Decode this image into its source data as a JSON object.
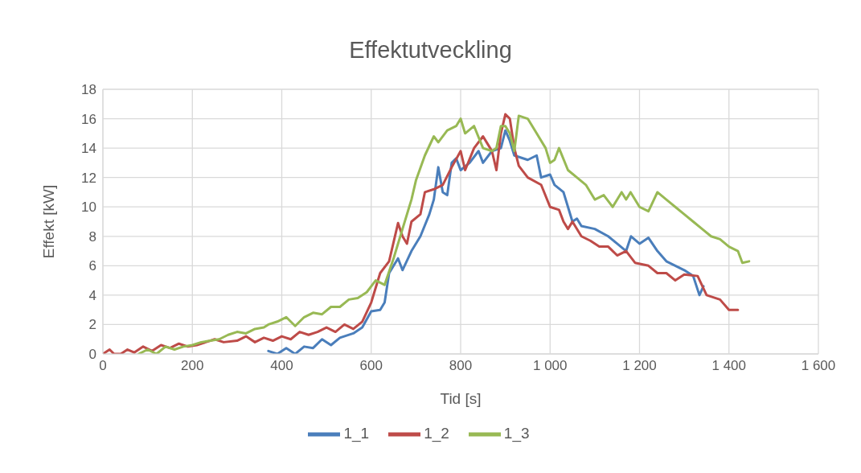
{
  "chart_data": {
    "type": "line",
    "title": "Effektutveckling",
    "xlabel": "Tid [s]",
    "ylabel": "Effekt [kW]",
    "xlim": [
      0,
      1600
    ],
    "xticks": [
      0,
      200,
      400,
      600,
      800,
      {
        "value": 1000,
        "label": "1 000"
      },
      {
        "value": 1200,
        "label": "1 200"
      },
      {
        "value": 1400,
        "label": "1 400"
      },
      {
        "value": 1600,
        "label": "1 600"
      }
    ],
    "ylim": [
      0,
      18
    ],
    "yticks": [
      0,
      2,
      4,
      6,
      8,
      10,
      12,
      14,
      16,
      18
    ],
    "grid": true,
    "legend": "bottom",
    "series": [
      {
        "name": "1_1",
        "color": "#4a7ebb",
        "x": [
          370,
          390,
          410,
          430,
          450,
          470,
          490,
          510,
          530,
          560,
          580,
          600,
          620,
          630,
          640,
          660,
          670,
          690,
          710,
          730,
          740,
          750,
          760,
          770,
          780,
          790,
          800,
          820,
          840,
          850,
          870,
          890,
          900,
          910,
          920,
          950,
          970,
          980,
          1000,
          1010,
          1030,
          1040,
          1050,
          1060,
          1070,
          1100,
          1130,
          1150,
          1170,
          1181,
          1200,
          1220,
          1240,
          1260,
          1280,
          1300,
          1320,
          1334,
          1343
        ],
        "values": [
          0.2,
          0.0,
          0.4,
          0.0,
          0.5,
          0.4,
          1.0,
          0.6,
          1.1,
          1.4,
          1.8,
          2.9,
          3.0,
          3.5,
          5.5,
          6.5,
          5.7,
          7.0,
          8.0,
          9.5,
          10.5,
          12.7,
          11.0,
          10.8,
          13.0,
          13.3,
          12.5,
          13.0,
          13.8,
          13.0,
          13.8,
          14.0,
          15.2,
          14.5,
          13.5,
          13.2,
          13.5,
          12.0,
          12.2,
          11.5,
          11.0,
          10.0,
          9.0,
          9.2,
          8.7,
          8.5,
          8.0,
          7.5,
          7.0,
          8.0,
          7.5,
          7.9,
          7.0,
          6.3,
          6.0,
          5.7,
          5.3,
          4.0,
          4.6
        ]
      },
      {
        "name": "1_2",
        "color": "#be4b48",
        "x": [
          0,
          15,
          25,
          40,
          55,
          70,
          90,
          110,
          130,
          150,
          170,
          190,
          210,
          230,
          250,
          270,
          300,
          320,
          340,
          360,
          380,
          400,
          420,
          440,
          460,
          480,
          500,
          520,
          540,
          560,
          580,
          600,
          620,
          640,
          660,
          670,
          680,
          690,
          710,
          720,
          740,
          760,
          780,
          800,
          810,
          830,
          850,
          860,
          870,
          880,
          890,
          900,
          910,
          920,
          930,
          950,
          980,
          1000,
          1020,
          1030,
          1040,
          1050,
          1070,
          1090,
          1110,
          1130,
          1150,
          1170,
          1190,
          1220,
          1240,
          1260,
          1280,
          1300,
          1330,
          1350,
          1380,
          1400,
          1420
        ],
        "values": [
          0,
          0.3,
          0,
          0,
          0.3,
          0.1,
          0.5,
          0.2,
          0.6,
          0.4,
          0.7,
          0.5,
          0.6,
          0.8,
          1.0,
          0.8,
          0.9,
          1.2,
          0.8,
          1.1,
          0.9,
          1.2,
          1.0,
          1.5,
          1.3,
          1.5,
          1.8,
          1.5,
          2.0,
          1.7,
          2.2,
          3.5,
          5.5,
          6.3,
          8.9,
          8.0,
          7.5,
          9.0,
          9.5,
          11.0,
          11.2,
          11.5,
          12.7,
          13.8,
          12.5,
          14.0,
          14.8,
          14.3,
          13.8,
          12.5,
          15.0,
          16.3,
          16.0,
          14.0,
          12.8,
          12.0,
          11.5,
          10.0,
          9.8,
          9.0,
          8.5,
          9.0,
          8.0,
          7.7,
          7.3,
          7.3,
          6.7,
          7.0,
          6.2,
          6.0,
          5.5,
          5.5,
          5.0,
          5.4,
          5.3,
          4.0,
          3.7,
          3.0,
          3.0
        ]
      },
      {
        "name": "1_3",
        "color": "#98b954",
        "x": [
          80,
          100,
          120,
          140,
          160,
          180,
          200,
          220,
          240,
          260,
          280,
          300,
          320,
          340,
          360,
          370,
          390,
          410,
          430,
          450,
          470,
          490,
          510,
          530,
          550,
          570,
          590,
          610,
          630,
          650,
          670,
          690,
          700,
          720,
          740,
          750,
          770,
          790,
          800,
          810,
          830,
          850,
          870,
          880,
          890,
          900,
          910,
          920,
          930,
          950,
          970,
          990,
          1000,
          1010,
          1020,
          1040,
          1060,
          1080,
          1100,
          1120,
          1140,
          1160,
          1170,
          1180,
          1200,
          1220,
          1240,
          1260,
          1280,
          1300,
          1320,
          1340,
          1360,
          1380,
          1400,
          1420,
          1430,
          1445
        ],
        "values": [
          0,
          0.3,
          0,
          0.5,
          0.3,
          0.5,
          0.6,
          0.8,
          0.9,
          1.0,
          1.3,
          1.5,
          1.4,
          1.7,
          1.8,
          2.0,
          2.2,
          2.5,
          1.9,
          2.5,
          2.8,
          2.7,
          3.2,
          3.2,
          3.7,
          3.8,
          4.2,
          5.0,
          4.7,
          6.5,
          8.5,
          10.5,
          11.8,
          13.5,
          14.8,
          14.4,
          15.2,
          15.5,
          16.0,
          15.0,
          15.5,
          14.0,
          13.8,
          14.0,
          15.5,
          15.5,
          15.0,
          13.8,
          16.2,
          16.0,
          15.0,
          14.0,
          13.0,
          13.2,
          14.0,
          12.5,
          12.0,
          11.5,
          10.5,
          10.8,
          10.0,
          11.0,
          10.5,
          11.0,
          10.0,
          9.7,
          11.0,
          10.5,
          10.0,
          9.5,
          9.0,
          8.5,
          8.0,
          7.8,
          7.3,
          7.0,
          6.2,
          6.3
        ]
      }
    ]
  }
}
